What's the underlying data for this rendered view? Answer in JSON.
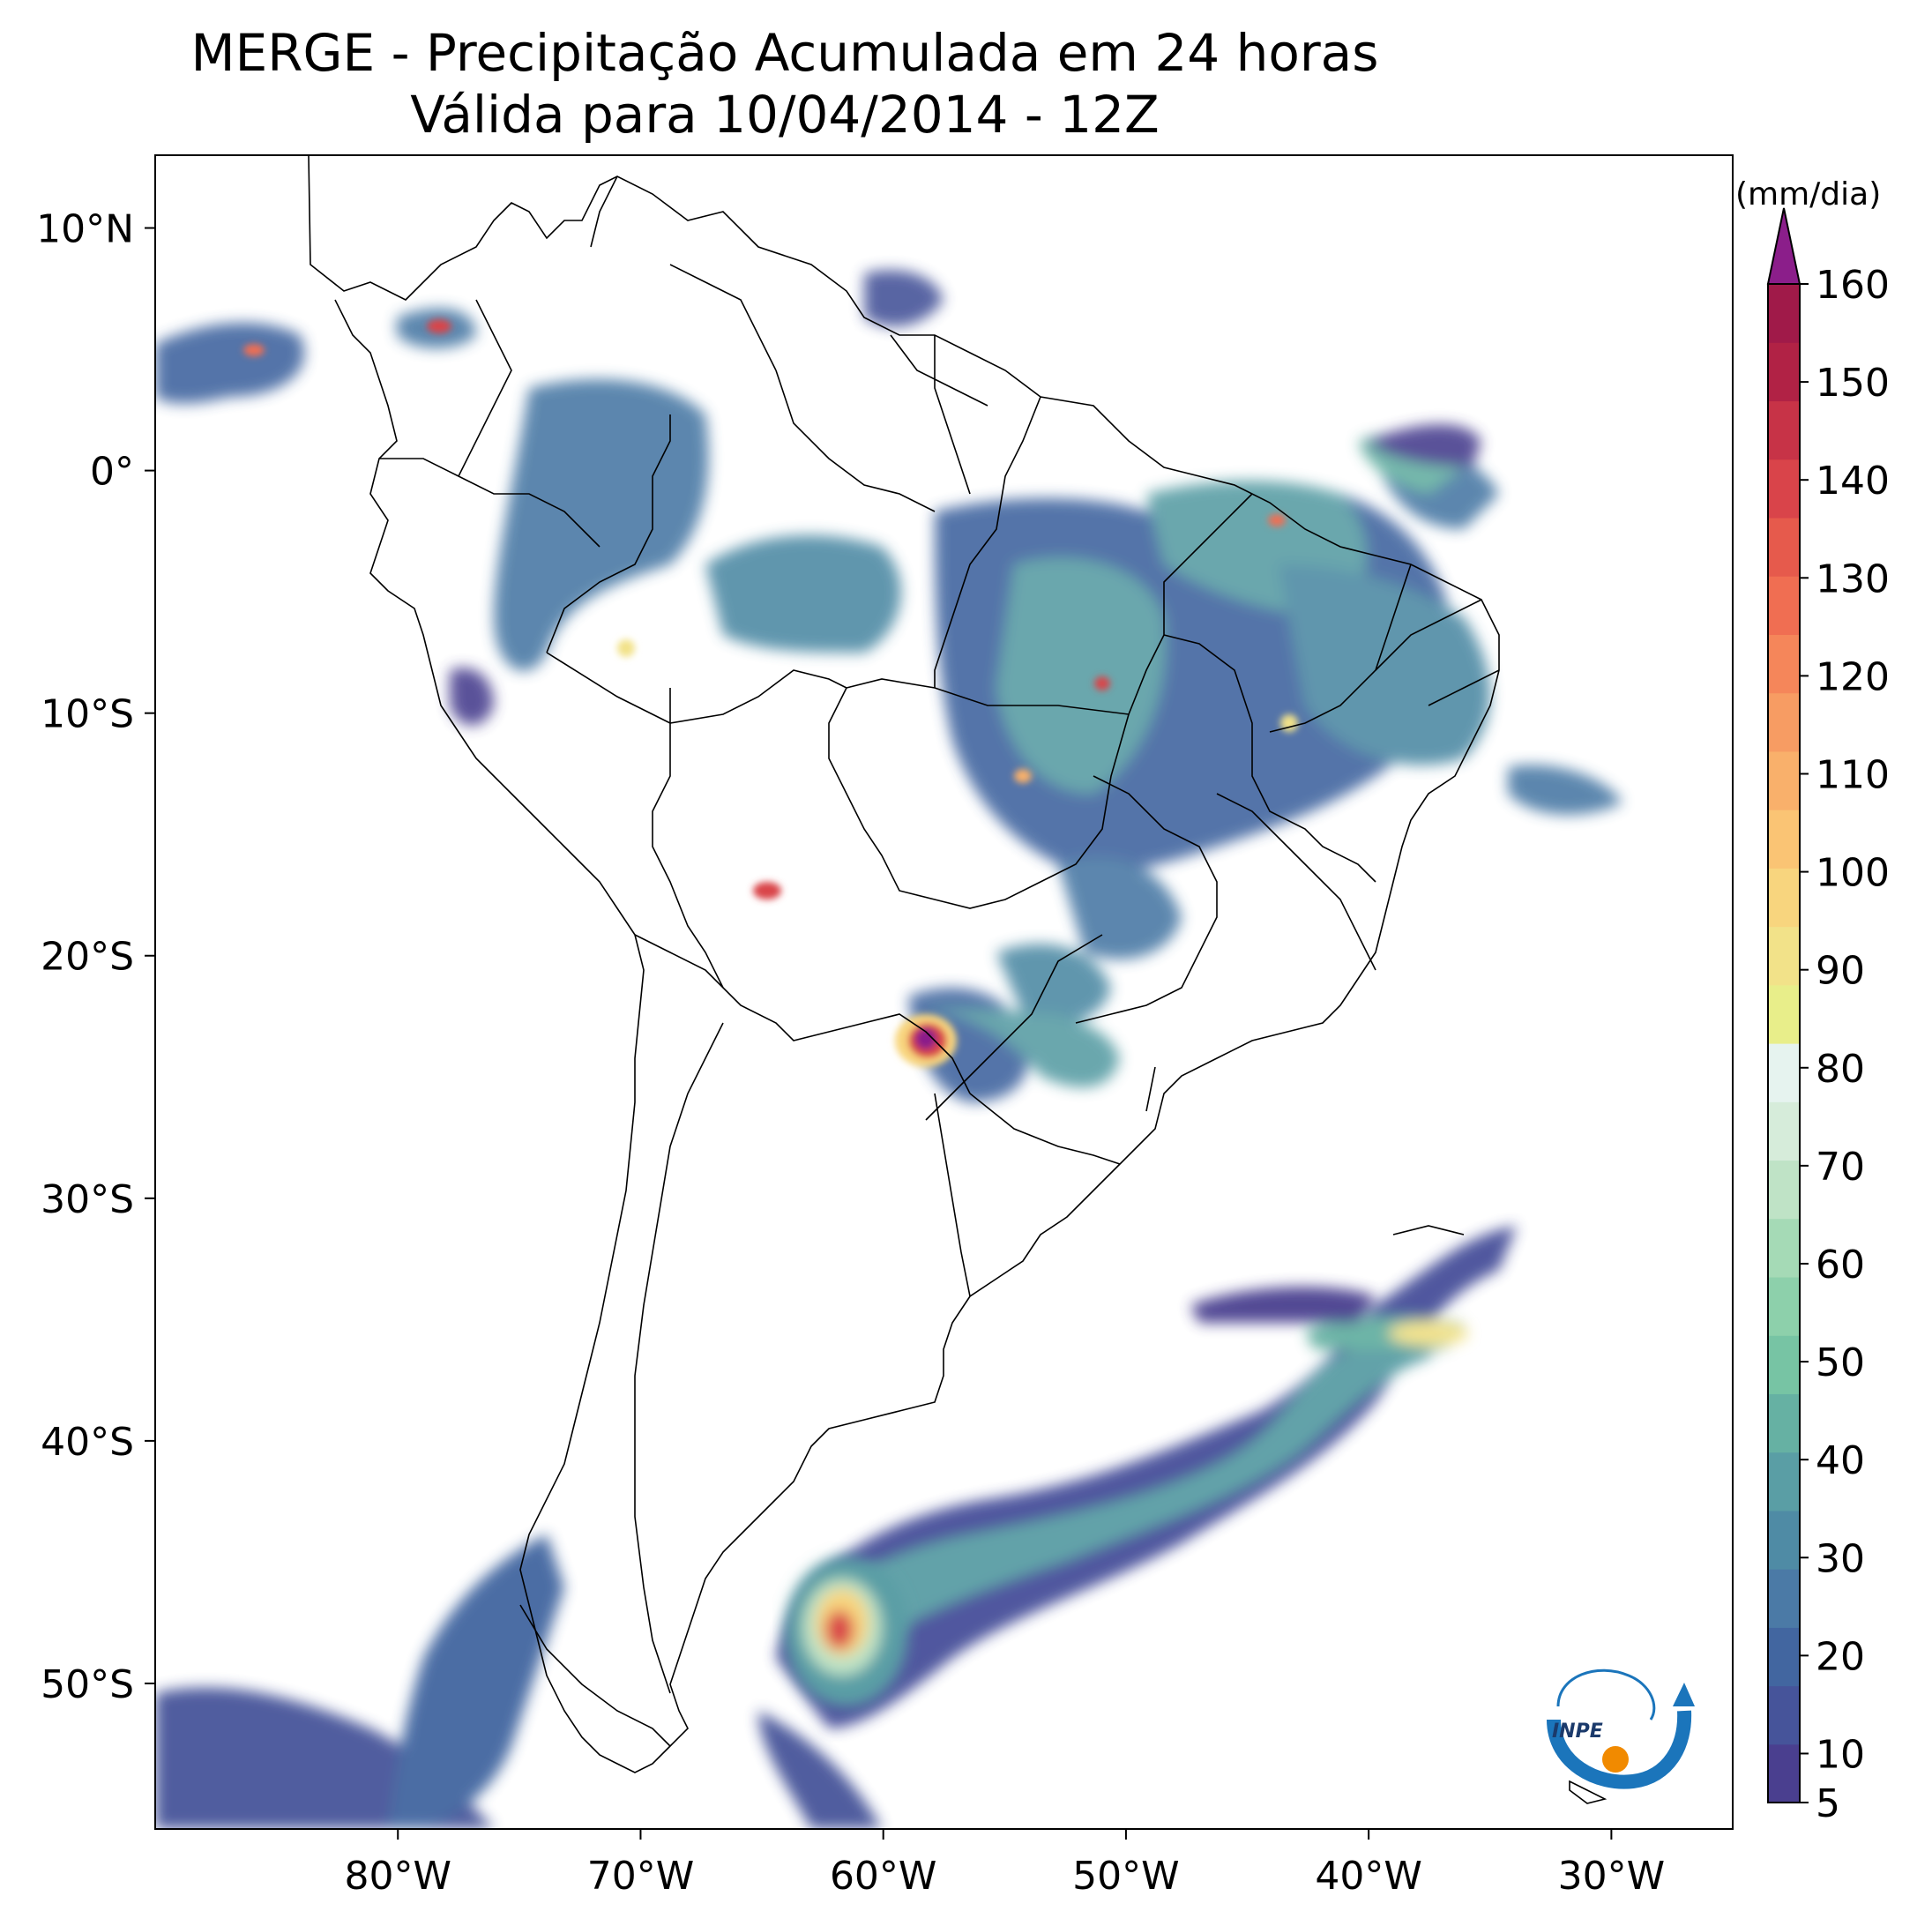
{
  "title": {
    "line1": "MERGE - Precipitação Acumulada em 24 horas",
    "line2": "Válida para 10/04/2014 - 12Z"
  },
  "map": {
    "lon_range": [
      -90,
      -25
    ],
    "lat_range": [
      -56,
      13
    ],
    "lon_ticks": [
      "80°W",
      "70°W",
      "60°W",
      "50°W",
      "40°W",
      "30°W"
    ],
    "lat_ticks": [
      "10°N",
      "0°",
      "10°S",
      "20°S",
      "30°S",
      "40°S",
      "50°S"
    ]
  },
  "colorbar": {
    "unit_label": "(mm/dia)",
    "tick_labels": [
      "5",
      "10",
      "20",
      "30",
      "40",
      "50",
      "60",
      "70",
      "80",
      "90",
      "100",
      "110",
      "120",
      "130",
      "140",
      "150",
      "160"
    ],
    "colors": [
      "#4a3f8f",
      "#46549a",
      "#4266a0",
      "#4b7aa6",
      "#4f8ba5",
      "#5a9ea5",
      "#66b1a3",
      "#77c4a4",
      "#8dd0ab",
      "#a5dab6",
      "#bfe3c6",
      "#d6ecda",
      "#e6f3ef",
      "#e8ee8a",
      "#f2e289",
      "#f8d57e",
      "#fac474",
      "#f9b06b",
      "#f79c63",
      "#f5865a",
      "#f06e52",
      "#e65a4c",
      "#d9444a",
      "#c73347",
      "#b12245",
      "#a01a49"
    ],
    "extend_color": "#8b1e8a"
  },
  "logo": {
    "text": "INPE"
  }
}
